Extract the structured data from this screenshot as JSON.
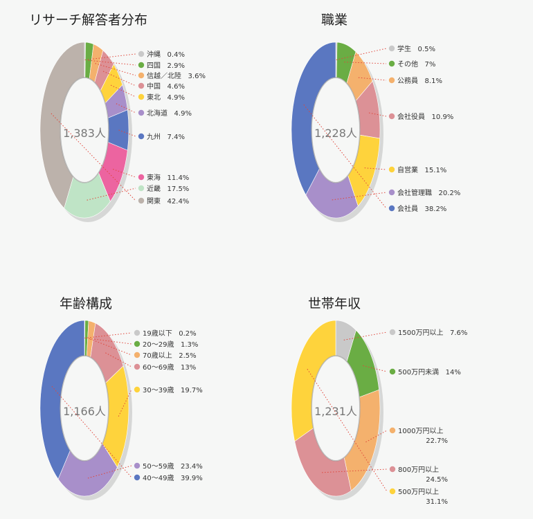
{
  "colors": {
    "gray_light": "#c9c9c9",
    "green": "#6aad44",
    "orange": "#f4b16d",
    "pink_muted": "#dc9196",
    "yellow": "#fed33c",
    "purple": "#a88fca",
    "blue": "#5a77c1",
    "pink": "#ec64a0",
    "mint": "#bfe4c6",
    "taupe": "#bcb2ab",
    "background": "#f6f7f6"
  },
  "chart_data": [
    {
      "type": "pie",
      "variant": "donut",
      "title": "リサーチ解答者分布",
      "center_label": "1,383人",
      "series": [
        {
          "label": "沖縄",
          "value_text": "0.4%",
          "value": 0.4,
          "color": "#c9c9c9"
        },
        {
          "label": "四国",
          "value_text": "2.9%",
          "value": 2.9,
          "color": "#6aad44"
        },
        {
          "label": "信越／北陸",
          "value_text": "3.6%",
          "value": 3.6,
          "color": "#f4b16d"
        },
        {
          "label": "中国",
          "value_text": "4.6%",
          "value": 4.6,
          "color": "#dc9196"
        },
        {
          "label": "東北",
          "value_text": "4.9%",
          "value": 4.9,
          "color": "#fed33c"
        },
        {
          "label": "北海道",
          "value_text": "4.9%",
          "value": 4.9,
          "color": "#a88fca"
        },
        {
          "label": "九州",
          "value_text": "7.4%",
          "value": 7.4,
          "color": "#5a77c1"
        },
        {
          "label": "東海",
          "value_text": "11.4%",
          "value": 11.4,
          "color": "#ec64a0"
        },
        {
          "label": "近畿",
          "value_text": "17.5%",
          "value": 17.5,
          "color": "#bfe4c6"
        },
        {
          "label": "関東",
          "value_text": "42.4%",
          "value": 42.4,
          "color": "#bcb2ab"
        }
      ]
    },
    {
      "type": "pie",
      "variant": "donut",
      "title": "職業",
      "center_label": "1,228人",
      "series": [
        {
          "label": "学生",
          "value_text": "0.5%",
          "value": 0.5,
          "color": "#c9c9c9"
        },
        {
          "label": "その他",
          "value_text": "7%",
          "value": 7,
          "color": "#6aad44"
        },
        {
          "label": "公務員",
          "value_text": "8.1%",
          "value": 8.1,
          "color": "#f4b16d"
        },
        {
          "label": "会社役員",
          "value_text": "10.9%",
          "value": 10.9,
          "color": "#dc9196"
        },
        {
          "label": "自営業",
          "value_text": "15.1%",
          "value": 15.1,
          "color": "#fed33c"
        },
        {
          "label": "会社管理職",
          "value_text": "20.2%",
          "value": 20.2,
          "color": "#a88fca"
        },
        {
          "label": "会社員",
          "value_text": "38.2%",
          "value": 38.2,
          "color": "#5a77c1"
        }
      ]
    },
    {
      "type": "pie",
      "variant": "donut",
      "title": "年齢構成",
      "center_label": "1,166人",
      "series": [
        {
          "label": "19歳以下",
          "value_text": "0.2%",
          "value": 0.2,
          "color": "#c9c9c9"
        },
        {
          "label": "20〜29歳",
          "value_text": "1.3%",
          "value": 1.3,
          "color": "#6aad44"
        },
        {
          "label": "70歳以上",
          "value_text": "2.5%",
          "value": 2.5,
          "color": "#f4b16d"
        },
        {
          "label": "60〜69歳",
          "value_text": "13%",
          "value": 13,
          "color": "#dc9196"
        },
        {
          "label": "30〜39歳",
          "value_text": "19.7%",
          "value": 19.7,
          "color": "#fed33c"
        },
        {
          "label": "50〜59歳",
          "value_text": "23.4%",
          "value": 23.4,
          "color": "#a88fca"
        },
        {
          "label": "40〜49歳",
          "value_text": "39.9%",
          "value": 39.9,
          "color": "#5a77c1"
        }
      ]
    },
    {
      "type": "pie",
      "variant": "donut",
      "title": "世帯年収",
      "center_label": "1,231人",
      "series": [
        {
          "label": "1500万円以上",
          "value_text": "7.6%",
          "value": 7.6,
          "color": "#c9c9c9"
        },
        {
          "label": "500万円未満",
          "value_text": "14%",
          "value": 14,
          "color": "#6aad44"
        },
        {
          "label": "1000万円以上",
          "value_text": "22.7%",
          "value": 22.7,
          "color": "#f4b16d"
        },
        {
          "label": "800万円以上",
          "value_text": "24.5%",
          "value": 24.5,
          "color": "#dc9196"
        },
        {
          "label": "500万円以上",
          "value_text": "31.1%",
          "value": 31.1,
          "color": "#fed33c"
        }
      ]
    }
  ]
}
